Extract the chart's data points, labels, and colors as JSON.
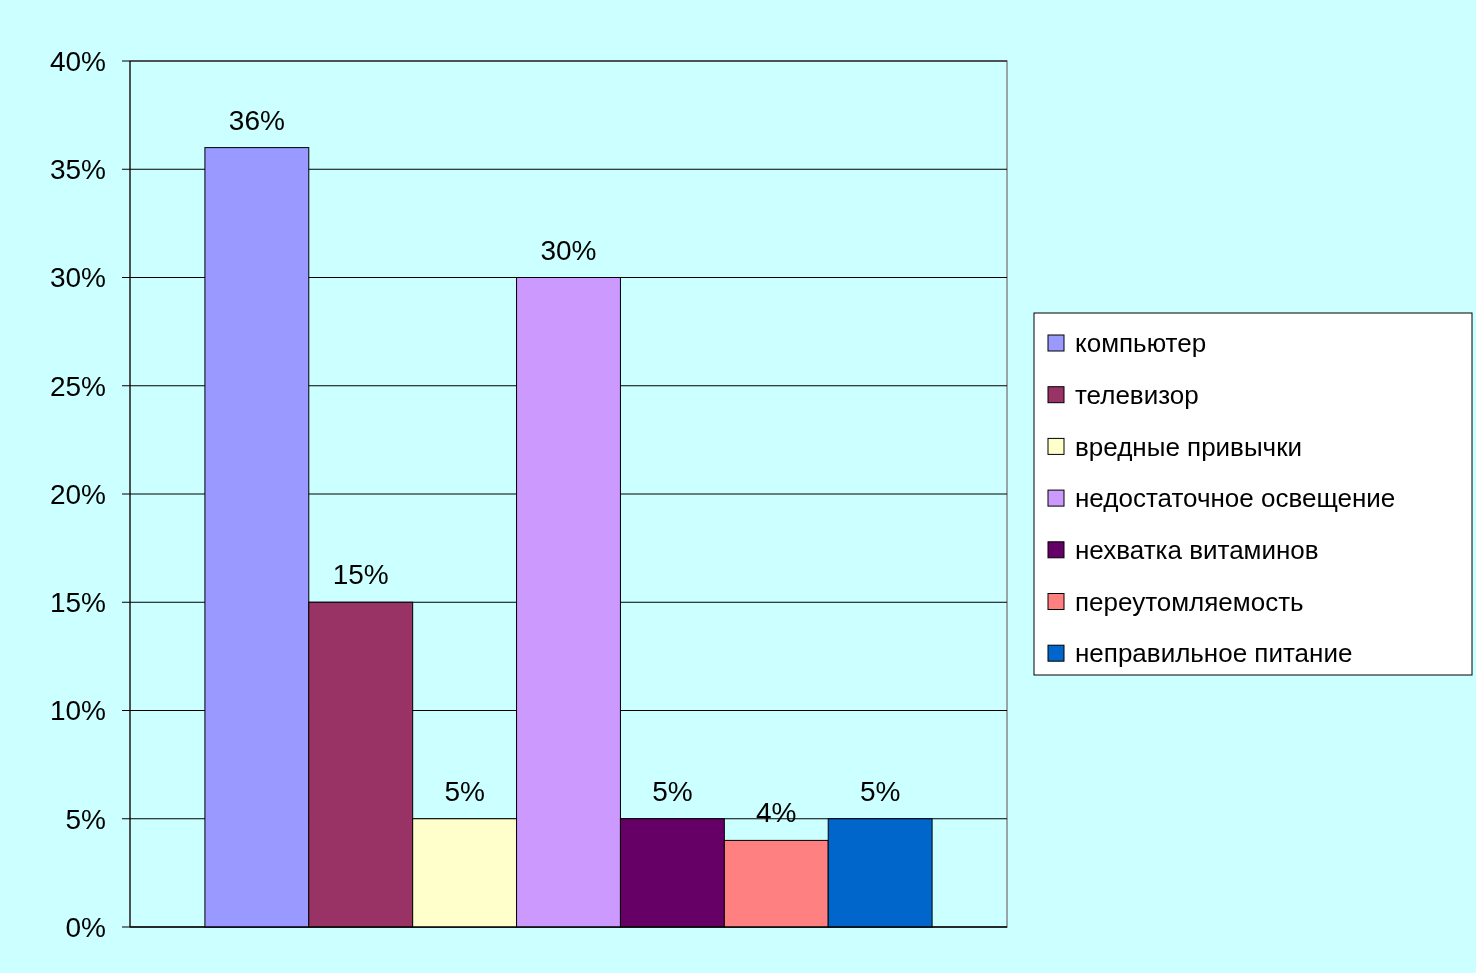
{
  "chart_data": {
    "type": "bar",
    "categories": [
      null
    ],
    "series": [
      {
        "name": "компьютер",
        "color": "#9999ff",
        "values": [
          36
        ],
        "value_labels": [
          "36%"
        ]
      },
      {
        "name": "телевизор",
        "color": "#993366",
        "values": [
          15
        ],
        "value_labels": [
          "15%"
        ]
      },
      {
        "name": "вредные привычки",
        "color": "#ffffcc",
        "values": [
          5
        ],
        "value_labels": [
          "5%"
        ]
      },
      {
        "name": "недостаточное освещение",
        "color": "#cc99ff",
        "values": [
          30
        ],
        "value_labels": [
          "30%"
        ]
      },
      {
        "name": "нехватка витаминов",
        "color": "#660066",
        "values": [
          5
        ],
        "value_labels": [
          "5%"
        ]
      },
      {
        "name": "переутомляемость",
        "color": "#ff8080",
        "values": [
          4
        ],
        "value_labels": [
          "4%"
        ]
      },
      {
        "name": "неправильное питание",
        "color": "#0066cc",
        "values": [
          5
        ],
        "value_labels": [
          "5%"
        ]
      }
    ],
    "ylim": [
      0,
      40
    ],
    "yticks": [
      {
        "value": 0,
        "label": "0%"
      },
      {
        "value": 5,
        "label": "5%"
      },
      {
        "value": 10,
        "label": "10%"
      },
      {
        "value": 15,
        "label": "15%"
      },
      {
        "value": 20,
        "label": "20%"
      },
      {
        "value": 25,
        "label": "25%"
      },
      {
        "value": 30,
        "label": "30%"
      },
      {
        "value": 35,
        "label": "35%"
      },
      {
        "value": 40,
        "label": "40%"
      }
    ],
    "grid": "y",
    "legend": "right"
  }
}
